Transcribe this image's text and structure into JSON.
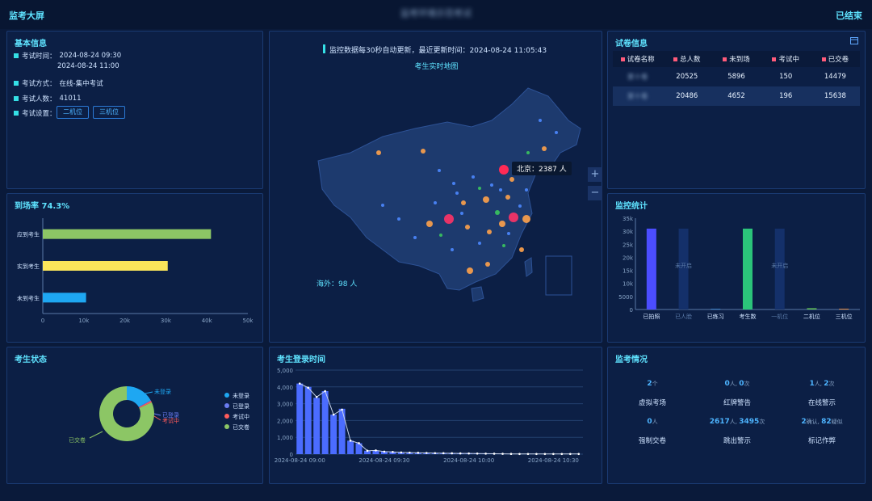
{
  "header": {
    "app_title": "监考大屏",
    "center_title": "监考环境示范考试",
    "status": "已结束"
  },
  "basic_info": {
    "title": "基本信息",
    "time_label": "考试时间：",
    "time_start": "2024-08-24 09:30",
    "time_end": "2024-08-24 11:00",
    "mode_label": "考试方式：",
    "mode_value": "在线-集中考试",
    "count_label": "考试人数：",
    "count_value": "41011",
    "settings_label": "考试设置：",
    "settings_buttons": [
      "二机位",
      "三机位"
    ]
  },
  "map": {
    "notice": "监控数据每30秒自动更新，最近更新时间：2024-08-24 11:05:43",
    "title": "考生实时地图",
    "beijing_tooltip": "北京：2387 人",
    "overseas": "海外：98 人",
    "zoom_in": "+",
    "zoom_out": "−"
  },
  "paper_info": {
    "title": "试卷信息",
    "columns": [
      "试卷名称",
      "总人数",
      "未到场",
      "考试中",
      "已交卷"
    ],
    "rows": [
      {
        "name": "第十卷",
        "total": "20525",
        "absent": "5896",
        "in_exam": "150",
        "submitted": "14479"
      },
      {
        "name": "第十卷",
        "total": "20486",
        "absent": "4652",
        "in_exam": "196",
        "submitted": "15638"
      }
    ]
  },
  "attendance": {
    "title": "到场率 74.3%",
    "chart_data": {
      "type": "bar",
      "orientation": "horizontal",
      "categories": [
        "应到考生",
        "实到考生",
        "未到考生"
      ],
      "values": [
        41011,
        30463,
        10548
      ],
      "colors": [
        "#8cc665",
        "#fae55a",
        "#1ea7f2"
      ],
      "xlim": [
        0,
        50000
      ],
      "xticks": [
        "0",
        "10k",
        "20k",
        "30k",
        "40k",
        "50k"
      ],
      "tick_values": [
        0,
        10000,
        20000,
        30000,
        40000,
        50000
      ]
    }
  },
  "monitor_stats": {
    "title": "监控统计",
    "chart_data": {
      "type": "bar",
      "categories": [
        "已拍照",
        "已人脸",
        "已练习",
        "考生数",
        "一机位",
        "二机位",
        "三机位"
      ],
      "values": [
        31000,
        31000,
        200,
        31000,
        31000,
        500,
        300
      ],
      "colors": [
        "#4b4dff",
        "#14306a",
        "#4da9ff",
        "#2bc47a",
        "#14306a",
        "#5dbb58",
        "#e58a3c"
      ],
      "labels": [
        "",
        "未开启",
        "",
        "",
        "未开启",
        "",
        ""
      ],
      "dimmed": [
        false,
        true,
        false,
        false,
        true,
        false,
        false
      ],
      "ylim": [
        0,
        35000
      ],
      "yticks": [
        "0",
        "5000",
        "10k",
        "15k",
        "20k",
        "25k",
        "30k",
        "35k"
      ],
      "tick_values": [
        0,
        5000,
        10000,
        15000,
        20000,
        25000,
        30000,
        35000
      ]
    }
  },
  "student_status": {
    "title": "考生状态",
    "chart_data": {
      "type": "pie",
      "categories": [
        "未登录",
        "已登录",
        "考试中",
        "已交卷"
      ],
      "values": [
        6200,
        150,
        346,
        30117
      ],
      "colors": [
        "#1ea7f2",
        "#6a7cf2",
        "#ff5b5b",
        "#8cc665"
      ]
    },
    "labels": {
      "not_logged": "未登录",
      "logged": "已登录",
      "in_exam": "考试中",
      "submitted": "已交卷"
    }
  },
  "login_time": {
    "title": "考生登录时间",
    "chart_data": {
      "type": "bar",
      "values": [
        4200,
        4000,
        3350,
        3750,
        2350,
        2700,
        800,
        650,
        200,
        220,
        150,
        130,
        100,
        90,
        80,
        70,
        60,
        55,
        50,
        45,
        40,
        35,
        30,
        25,
        20,
        15
      ],
      "line_values": [
        4200,
        3950,
        3400,
        3750,
        2350,
        2650,
        800,
        650,
        200,
        220,
        150,
        130,
        100,
        90,
        80,
        70,
        60,
        55,
        50,
        45,
        40,
        35,
        30,
        25,
        20,
        15
      ],
      "ylim": [
        0,
        5000
      ],
      "yticks": [
        "0",
        "1,000",
        "2,000",
        "3,000",
        "4,000",
        "5,000"
      ],
      "tick_values": [
        0,
        1000,
        2000,
        3000,
        4000,
        5000
      ],
      "xticks": [
        "2024-08-24 09:00",
        "2024-08-24 09:30",
        "2024-08-24 10:00",
        "2024-08-24 10:30"
      ],
      "xtick_index": [
        0,
        10,
        20,
        30
      ],
      "slots": 34,
      "bar_color": "#4b6cff",
      "line_color": "#c7d3ea"
    }
  },
  "monitor_situation": {
    "title": "监考情况",
    "items": [
      {
        "value": "2",
        "unit": "个",
        "label": "虚拟考场"
      },
      {
        "value": "0",
        "unit": "人, ",
        "value2": "0",
        "unit2": "次",
        "label": "红牌警告"
      },
      {
        "value": "1",
        "unit": "人, ",
        "value2": "2",
        "unit2": "次",
        "label": "在线警示"
      },
      {
        "value": "0",
        "unit": "人",
        "label": "强制交卷"
      },
      {
        "value": "2617",
        "unit": "人, ",
        "value2": "3495",
        "unit2": "次",
        "label": "跳出警示"
      },
      {
        "value": "2",
        "unit": "确认, ",
        "value2": "82",
        "unit2": "疑似",
        "label": "标记作弊"
      }
    ]
  }
}
